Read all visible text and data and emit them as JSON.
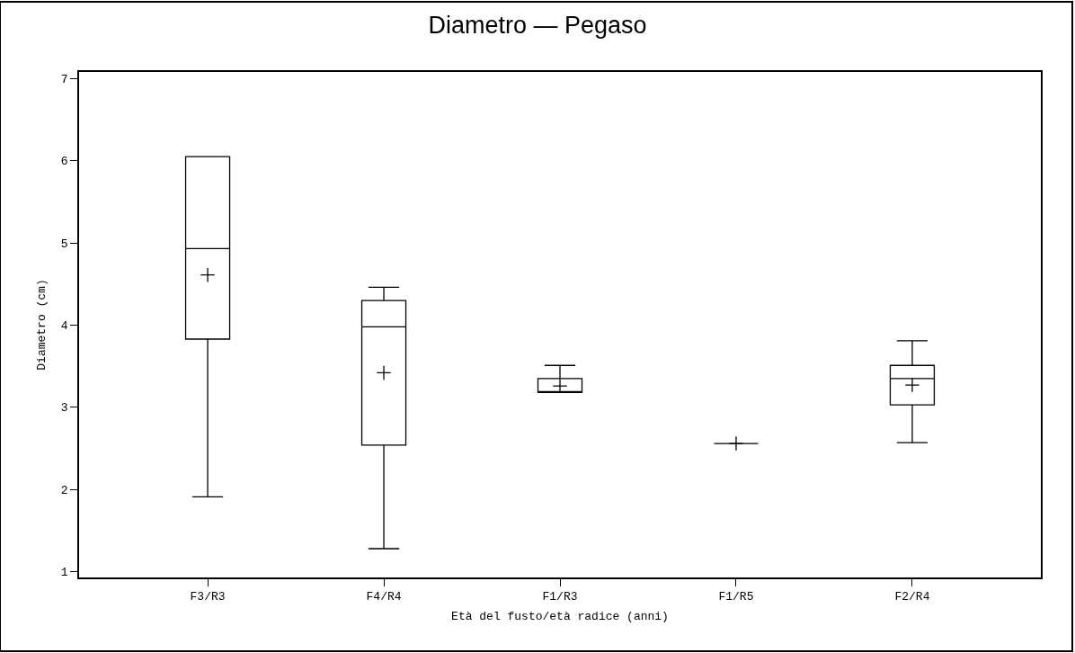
{
  "chart_data": {
    "type": "box",
    "title": "Diametro — Pegaso",
    "xlabel": "Età del fusto/età radice (anni)",
    "ylabel": "Diametro (cm)",
    "categories": [
      "F3/R3",
      "F4/R4",
      "F1/R3",
      "F1/R5",
      "F2/R4"
    ],
    "boxes": [
      {
        "low": 1.91,
        "q1": 3.83,
        "median": 4.93,
        "q3": 6.05,
        "high": 6.05,
        "mean": 4.61
      },
      {
        "low": 1.28,
        "q1": 2.54,
        "median": 3.98,
        "q3": 4.3,
        "high": 4.46,
        "mean": 3.42
      },
      {
        "low": 3.18,
        "q1": 3.18,
        "median": 3.18,
        "q3": 3.35,
        "high": 3.51,
        "mean": 3.26
      },
      {
        "low": 2.56,
        "q1": 2.56,
        "median": 2.56,
        "q3": 2.56,
        "high": 2.56,
        "mean": 2.56
      },
      {
        "low": 2.57,
        "q1": 3.03,
        "median": 3.35,
        "q3": 3.51,
        "high": 3.81,
        "mean": 3.27
      }
    ],
    "color": "#000000",
    "ylim": [
      0.93,
      7.08
    ],
    "yticks": [
      1,
      2,
      3,
      4,
      5,
      6,
      7
    ]
  }
}
